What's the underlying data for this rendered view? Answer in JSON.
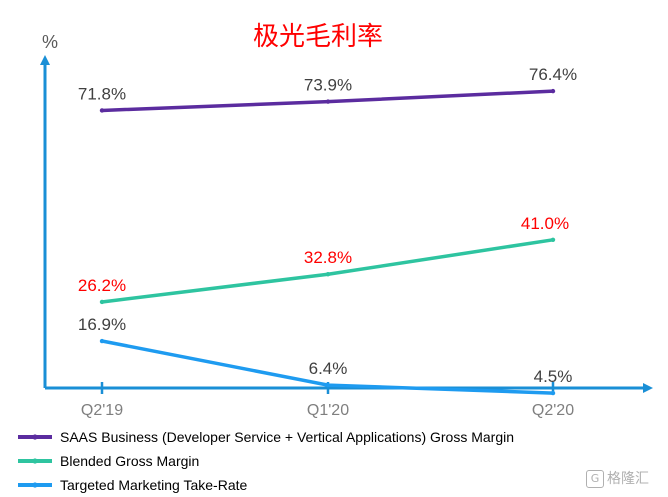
{
  "chart_data": {
    "type": "line",
    "title": "极光毛利率",
    "ylabel": "%",
    "categories": [
      "Q2'19",
      "Q1'20",
      "Q2'20"
    ],
    "ylim": [
      0,
      100
    ],
    "grid": false,
    "legend_position": "bottom",
    "series": [
      {
        "name": "SAAS Business (Developer Service + Vertical Applications) Gross Margin",
        "values": [
          71.8,
          73.9,
          76.4
        ],
        "labels": [
          "71.8%",
          "73.9%",
          "76.4%"
        ],
        "color": "#5b2c9f",
        "label_color": "#404040"
      },
      {
        "name": "Blended Gross Margin",
        "values": [
          26.2,
          32.8,
          41.0
        ],
        "labels": [
          "26.2%",
          "32.8%",
          "41.0%"
        ],
        "color": "#2ec4a0",
        "label_color": "#ff0000"
      },
      {
        "name": "Targeted Marketing Take-Rate",
        "values": [
          16.9,
          6.4,
          4.5
        ],
        "labels": [
          "16.9%",
          "6.4%",
          "4.5%"
        ],
        "color": "#1e9bf0",
        "label_color": "#404040"
      }
    ]
  },
  "axis_color": "#1a8fd6",
  "watermark": {
    "logo": "G",
    "text": "格隆汇"
  }
}
